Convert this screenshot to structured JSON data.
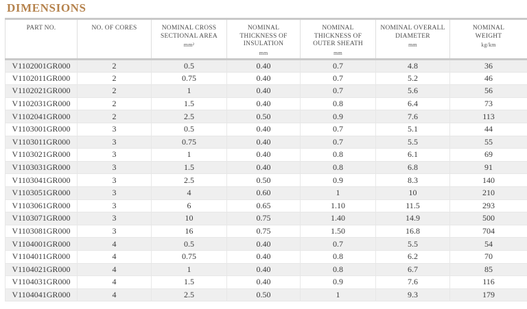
{
  "title": "DIMENSIONS",
  "colors": {
    "title_accent": "#b5824c",
    "row_stripe": "#efefef",
    "border_heavy": "#c9c9c9",
    "border_light": "#e7e7e7",
    "header_text": "#4d4d4d",
    "body_text": "#3b3b3b"
  },
  "table": {
    "columns": [
      {
        "key": "part-no",
        "label": "PART NO.",
        "unit": ""
      },
      {
        "key": "cores",
        "label": "NO. OF CORES",
        "unit": ""
      },
      {
        "key": "area",
        "label": "NOMINAL CROSS SECTIONAL AREA",
        "unit": "mm²"
      },
      {
        "key": "insulation",
        "label": "NOMINAL THICKNESS OF INSULATION",
        "unit": "mm"
      },
      {
        "key": "sheath",
        "label": "NOMINAL THICKNESS OF OUTER SHEATH",
        "unit": "mm"
      },
      {
        "key": "diameter",
        "label": "NOMINAL OVERALL DIAMETER",
        "unit": "mm"
      },
      {
        "key": "weight",
        "label": "NOMINAL WEIGHT",
        "unit": "kg/km"
      }
    ],
    "rows": [
      [
        "V1102001GR000",
        "2",
        "0.5",
        "0.40",
        "0.7",
        "4.8",
        "36"
      ],
      [
        "V1102011GR000",
        "2",
        "0.75",
        "0.40",
        "0.7",
        "5.2",
        "46"
      ],
      [
        "V1102021GR000",
        "2",
        "1",
        "0.40",
        "0.7",
        "5.6",
        "56"
      ],
      [
        "V1102031GR000",
        "2",
        "1.5",
        "0.40",
        "0.8",
        "6.4",
        "73"
      ],
      [
        "V1102041GR000",
        "2",
        "2.5",
        "0.50",
        "0.9",
        "7.6",
        "113"
      ],
      [
        "V1103001GR000",
        "3",
        "0.5",
        "0.40",
        "0.7",
        "5.1",
        "44"
      ],
      [
        "V1103011GR000",
        "3",
        "0.75",
        "0.40",
        "0.7",
        "5.5",
        "55"
      ],
      [
        "V1103021GR000",
        "3",
        "1",
        "0.40",
        "0.8",
        "6.1",
        "69"
      ],
      [
        "V1103031GR000",
        "3",
        "1.5",
        "0.40",
        "0.8",
        "6.8",
        "91"
      ],
      [
        "V1103041GR000",
        "3",
        "2.5",
        "0.50",
        "0.9",
        "8.3",
        "140"
      ],
      [
        "V1103051GR000",
        "3",
        "4",
        "0.60",
        "1",
        "10",
        "210"
      ],
      [
        "V1103061GR000",
        "3",
        "6",
        "0.65",
        "1.10",
        "11.5",
        "293"
      ],
      [
        "V1103071GR000",
        "3",
        "10",
        "0.75",
        "1.40",
        "14.9",
        "500"
      ],
      [
        "V1103081GR000",
        "3",
        "16",
        "0.75",
        "1.50",
        "16.8",
        "704"
      ],
      [
        "V1104001GR000",
        "4",
        "0.5",
        "0.40",
        "0.7",
        "5.5",
        "54"
      ],
      [
        "V1104011GR000",
        "4",
        "0.75",
        "0.40",
        "0.8",
        "6.2",
        "70"
      ],
      [
        "V1104021GR000",
        "4",
        "1",
        "0.40",
        "0.8",
        "6.7",
        "85"
      ],
      [
        "V1104031GR000",
        "4",
        "1.5",
        "0.40",
        "0.9",
        "7.6",
        "116"
      ],
      [
        "V1104041GR000",
        "4",
        "2.5",
        "0.50",
        "1",
        "9.3",
        "179"
      ]
    ]
  }
}
